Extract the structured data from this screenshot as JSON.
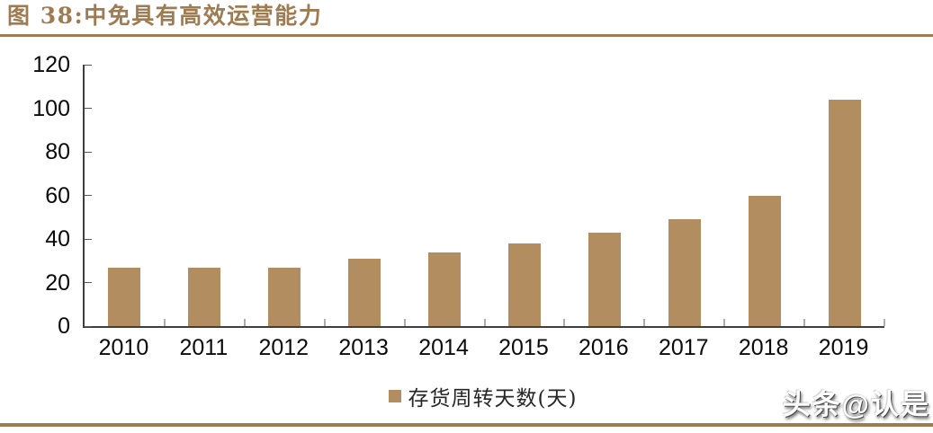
{
  "figure": {
    "title": "图 38:中免具有高效运营能力",
    "watermark": "头条@认是"
  },
  "legend": {
    "label": "存货周转天数(天)",
    "swatch_shape": "square"
  },
  "colors": {
    "accent": "#9F7B52",
    "bar": "#B18D60",
    "axis": "#3F3F3F",
    "tick": "#595959",
    "label_text": "#0A0A0A",
    "legend_text": "#262626",
    "watermark_text": "#FFFFFF"
  },
  "chart_data": {
    "type": "bar",
    "title": "图 38:中免具有高效运营能力",
    "categories": [
      "2010",
      "2011",
      "2012",
      "2013",
      "2014",
      "2015",
      "2016",
      "2017",
      "2018",
      "2019"
    ],
    "values": [
      27,
      27,
      27,
      31,
      34,
      38,
      43,
      49,
      60,
      104
    ],
    "series_name": "存货周转天数(天)",
    "xlabel": "",
    "ylabel": "",
    "ylim": [
      0,
      120
    ],
    "yticks": [
      0,
      20,
      40,
      60,
      80,
      100,
      120
    ],
    "grid": false,
    "legend_position": "bottom",
    "tick_direction": "in"
  }
}
